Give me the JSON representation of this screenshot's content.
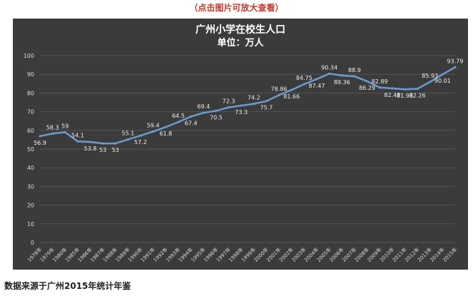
{
  "header": {
    "note": "（点击图片可放大查看）"
  },
  "footer": {
    "source": "数据来源于广州2015年统计年鉴"
  },
  "colors": {
    "background": "#3b3b3b",
    "line": "#6a9bd1",
    "grid": "#555555",
    "text": "#dddddd"
  },
  "chart_data": {
    "type": "line",
    "title": "广州小学在校生人口",
    "subtitle": "单位：万人",
    "xlabel": "",
    "ylabel": "",
    "ylim": [
      0,
      100
    ],
    "yticks": [
      0,
      10,
      20,
      30,
      40,
      50,
      60,
      70,
      80,
      90,
      100
    ],
    "grid": true,
    "legend": "none",
    "categories": [
      "1978年",
      "1979年",
      "1980年",
      "1985年",
      "1986年",
      "1987年",
      "1988年",
      "1989年",
      "1990年",
      "1991年",
      "1992年",
      "1993年",
      "1994年",
      "1995年",
      "1996年",
      "1997年",
      "1998年",
      "1999年",
      "2000年",
      "2001年",
      "2002年",
      "2003年",
      "2004年",
      "2005年",
      "2006年",
      "2007年",
      "2008年",
      "2009年",
      "2010年",
      "2011年",
      "2012年",
      "2013年",
      "2014年",
      "2015年"
    ],
    "series": [
      {
        "values": [
          56.9,
          58.3,
          59,
          54.1,
          53.8,
          53,
          53,
          55.1,
          57.2,
          59.4,
          61.8,
          64.5,
          67.4,
          69.4,
          70.5,
          72.3,
          73.3,
          74.2,
          75.7,
          78.86,
          81.66,
          84.75,
          87.47,
          90.34,
          89.36,
          88.9,
          86.29,
          82.89,
          82.48,
          81.98,
          82.26,
          85.93,
          90.01,
          93.79
        ]
      }
    ]
  }
}
